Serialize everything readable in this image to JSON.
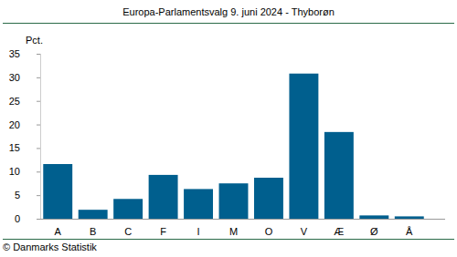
{
  "chart_data": {
    "type": "bar",
    "title": "Europa-Parlamentsvalg 9. juni 2024 - Thyborøn",
    "ylabel": "Pct.",
    "source": "© Danmarks Statistik",
    "categories": [
      "A",
      "B",
      "C",
      "F",
      "I",
      "M",
      "O",
      "V",
      "Æ",
      "Ø",
      "Å"
    ],
    "values": [
      11.6,
      1.9,
      4.2,
      9.3,
      6.3,
      7.5,
      8.7,
      30.8,
      18.4,
      0.7,
      0.5
    ],
    "color": "#005f8e",
    "ylim": [
      0,
      35
    ],
    "yticks": [
      0,
      5,
      10,
      15,
      20,
      25,
      30,
      35
    ],
    "grid": false
  }
}
